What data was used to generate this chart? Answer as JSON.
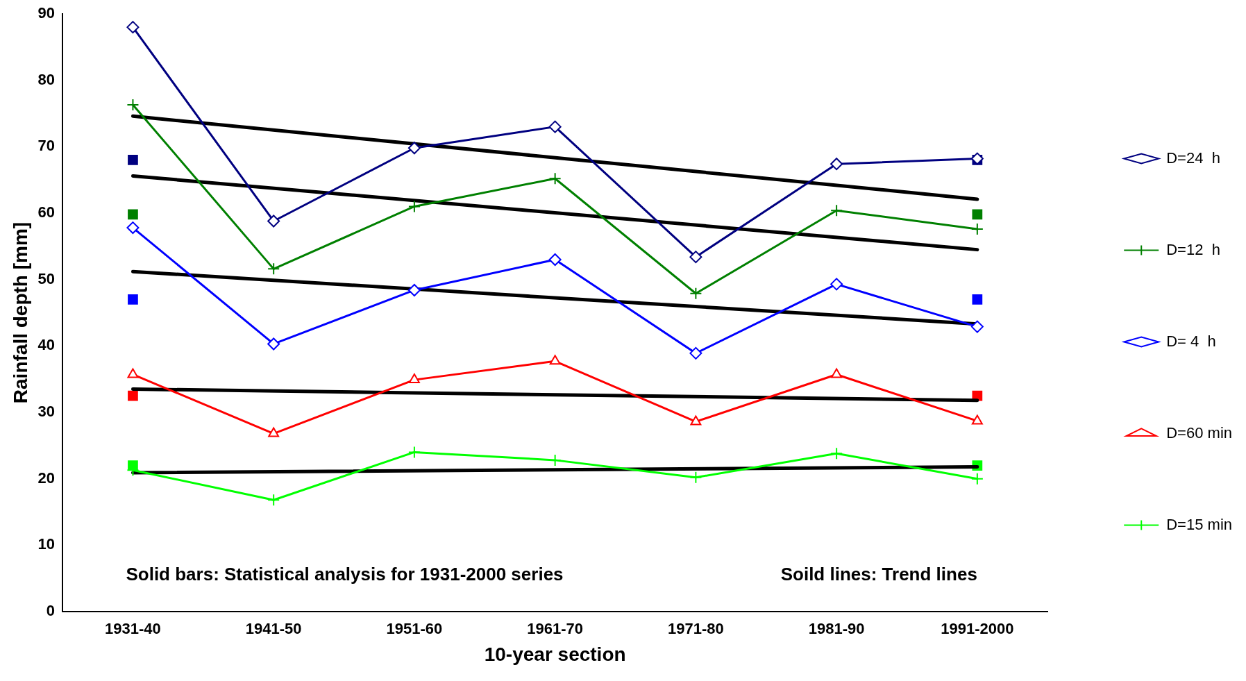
{
  "chart_data": {
    "type": "line",
    "xlabel": "10-year section",
    "ylabel": "Rainfall depth [mm]",
    "categories": [
      "1931-40",
      "1941-50",
      "1951-60",
      "1961-70",
      "1971-80",
      "1981-90",
      "1991-2000"
    ],
    "ylim": [
      0,
      90
    ],
    "yticks": [
      0,
      10,
      20,
      30,
      40,
      50,
      60,
      70,
      80,
      90
    ],
    "grid": false,
    "legend": "right",
    "annotations": [
      "Solid bars: Statistical analysis for 1931-2000 series",
      "Soild lines: Trend lines"
    ],
    "series": [
      {
        "name": "D=24  h",
        "color": "#000080",
        "marker": "diamond",
        "values": [
          88,
          58.8,
          69.8,
          73,
          53.4,
          67.4,
          68.2
        ]
      },
      {
        "name": "D=12  h",
        "color": "#008000",
        "marker": "cross",
        "values": [
          76.3,
          51.6,
          61,
          65.2,
          47.9,
          60.4,
          57.6
        ]
      },
      {
        "name": "D= 4  h",
        "color": "#0000ff",
        "marker": "diamond",
        "values": [
          57.8,
          40.3,
          48.4,
          53,
          38.9,
          49.3,
          42.9
        ]
      },
      {
        "name": "D=60 min",
        "color": "#ff0000",
        "marker": "triangle",
        "values": [
          35.7,
          26.8,
          34.9,
          37.7,
          28.6,
          35.7,
          28.7
        ]
      },
      {
        "name": "D=15 min",
        "color": "#00ff00",
        "marker": "cross",
        "values": [
          21.3,
          16.8,
          24,
          22.8,
          20.2,
          23.8,
          20
        ]
      },
      {
        "type": "line",
        "color": "#000000",
        "marker": "none",
        "x": [
          "1931-40",
          "1991-2000"
        ],
        "values": [
          74.6,
          62.1
        ]
      },
      {
        "type": "line",
        "color": "#000000",
        "marker": "none",
        "x": [
          "1931-40",
          "1991-2000"
        ],
        "values": [
          65.6,
          54.5
        ]
      },
      {
        "type": "line",
        "color": "#000000",
        "marker": "none",
        "x": [
          "1931-40",
          "1991-2000"
        ],
        "values": [
          51.2,
          43.3
        ]
      },
      {
        "type": "line",
        "color": "#000000",
        "marker": "none",
        "x": [
          "1931-40",
          "1991-2000"
        ],
        "values": [
          33.5,
          31.8
        ]
      },
      {
        "type": "line",
        "color": "#000000",
        "marker": "none",
        "x": [
          "1931-40",
          "1991-2000"
        ],
        "values": [
          20.9,
          21.8
        ]
      },
      {
        "type": "scatter",
        "color": "#000080",
        "marker": "square",
        "x": [
          "1931-40",
          "1991-2000"
        ],
        "values": [
          68,
          68
        ]
      },
      {
        "type": "scatter",
        "color": "#008000",
        "marker": "square",
        "x": [
          "1931-40",
          "1991-2000"
        ],
        "values": [
          59.8,
          59.8
        ]
      },
      {
        "type": "scatter",
        "color": "#0000ff",
        "marker": "square",
        "x": [
          "1931-40",
          "1991-2000"
        ],
        "values": [
          47,
          47
        ]
      },
      {
        "type": "scatter",
        "color": "#ff0000",
        "marker": "square",
        "x": [
          "1931-40",
          "1991-2000"
        ],
        "values": [
          32.5,
          32.5
        ]
      },
      {
        "type": "scatter",
        "color": "#00ff00",
        "marker": "square",
        "x": [
          "1931-40",
          "1991-2000"
        ],
        "values": [
          22,
          22
        ]
      }
    ]
  }
}
